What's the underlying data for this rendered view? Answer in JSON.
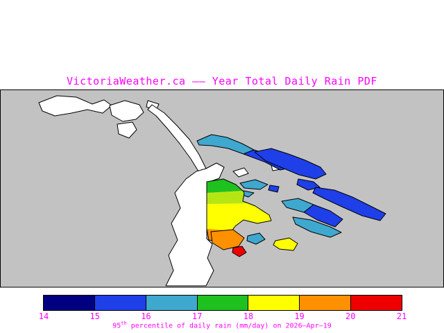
{
  "title": "VictoriaWeather.ca —— Year Total Daily Rain PDF",
  "accent_color": "#ff00ff",
  "map": {
    "land_color": "#c2c2c2",
    "water_color": "#ffffff",
    "outline_color": "#000000",
    "patch_colors": {
      "navy": "#000080",
      "blue": "#1f3fe8",
      "cyan": "#3fa8cf",
      "green": "#1fc11f",
      "yellow_green": "#b5e614",
      "yellow": "#ffff00",
      "orange": "#ff9000",
      "red": "#ee0000"
    }
  },
  "colorbar": {
    "segments": [
      "#000080",
      "#1f3fe8",
      "#3fa8cf",
      "#1fc11f",
      "#ffff00",
      "#ff9000",
      "#ee0000"
    ],
    "ticks": [
      "14",
      "15",
      "16",
      "17",
      "18",
      "19",
      "20",
      "21"
    ],
    "caption": {
      "base": "95",
      "sup": "th",
      "rest": " percentile of daily rain (mm/day) on 2026–Apr–19"
    }
  },
  "chart_data": {
    "type": "heatmap",
    "title": "Year Total Daily Rain PDF",
    "colorbar": {
      "min": 14,
      "max": 21,
      "ticks": [
        14,
        15,
        16,
        17,
        18,
        19,
        20,
        21
      ],
      "label": "95th percentile of daily rain (mm/day) on 2026-Apr-19",
      "units": "mm/day"
    }
  }
}
